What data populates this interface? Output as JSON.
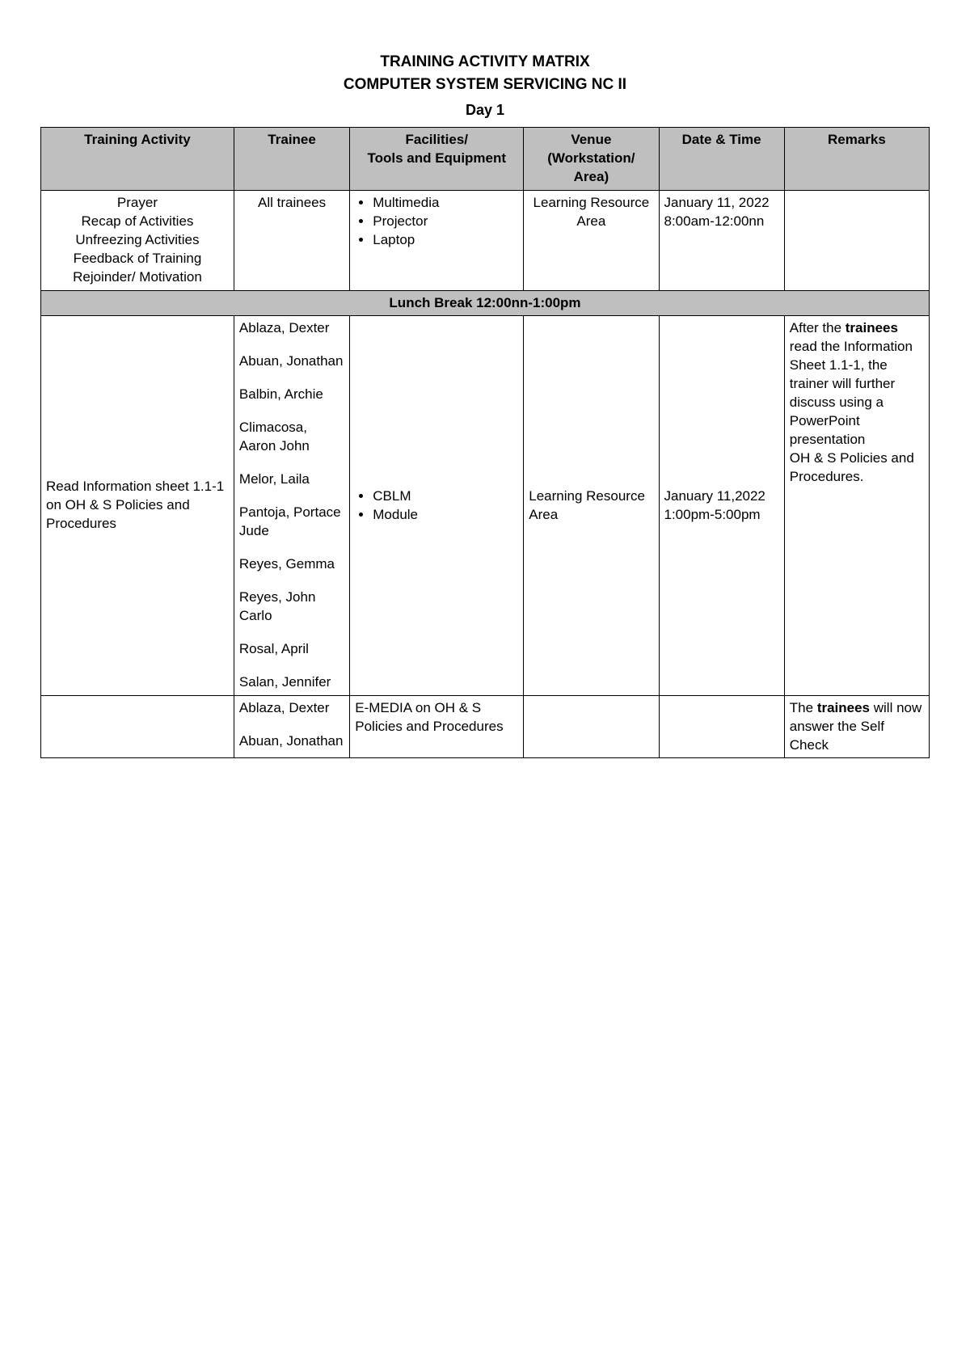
{
  "titles": {
    "main": "TRAINING ACTIVITY MATRIX",
    "sub": "COMPUTER SYSTEM SERVICING NC II",
    "day": "Day 1"
  },
  "columns": {
    "c1": "Training Activity",
    "c2": "Trainee",
    "c3": "Facilities/\nTools and Equipment",
    "c4": "Venue (Workstation/ Area)",
    "c5": "Date & Time",
    "c6": "Remarks"
  },
  "row1": {
    "activity_lines": [
      "Prayer",
      "Recap of Activities",
      "Unfreezing Activities",
      "Feedback of Training",
      "Rejoinder/ Motivation"
    ],
    "trainee": "All trainees",
    "facilities": [
      "Multimedia",
      "Projector",
      "Laptop"
    ],
    "venue": "Learning Resource Area",
    "datetime": "January 11, 2022 8:00am-12:00nn",
    "remarks": ""
  },
  "lunch_break": "Lunch Break 12:00nn-1:00pm",
  "row2": {
    "activity": "Read Information sheet 1.1-1 on OH & S Policies and Procedures",
    "trainees": [
      "Ablaza, Dexter",
      "Abuan, Jonathan",
      "Balbin, Archie",
      "Climacosa, Aaron John",
      "Melor, Laila",
      "Pantoja, Portace Jude",
      "Reyes, Gemma",
      "Reyes, John Carlo",
      "Rosal, April",
      "Salan, Jennifer"
    ],
    "facilities": [
      "CBLM",
      "Module"
    ],
    "venue": "Learning Resource Area",
    "datetime": "January 11,2022 1:00pm-5:00pm",
    "remarks_pre": "After the ",
    "remarks_bold": "trainees",
    "remarks_post": " read the Information Sheet 1.1-1, the trainer will further discuss using a PowerPoint presentation",
    "remarks_line2": "OH & S Policies and Procedures."
  },
  "row3": {
    "activity": "",
    "trainees": [
      "Ablaza, Dexter",
      "Abuan, Jonathan"
    ],
    "facilities_text": "E-MEDIA on OH & S Policies and Procedures",
    "venue": "",
    "datetime": "",
    "remarks_pre": "The ",
    "remarks_bold": "trainees",
    "remarks_post": " will now answer the Self Check"
  },
  "colors": {
    "header_bg": "#bfbfbf",
    "border": "#000000",
    "background": "#ffffff",
    "text": "#000000"
  }
}
